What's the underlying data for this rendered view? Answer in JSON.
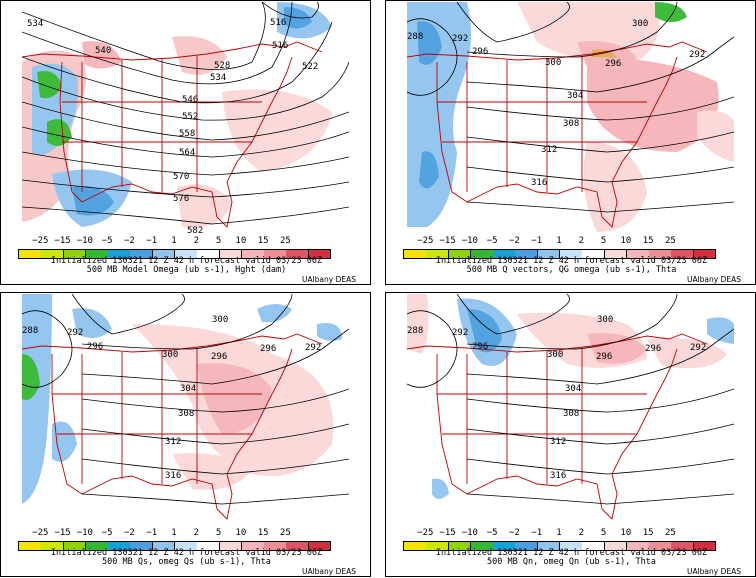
{
  "colorbar": {
    "tick_labels": [
      "−25",
      "−15",
      "−10",
      "−5",
      "−2",
      "−1",
      "1",
      "2",
      "5",
      "10",
      "15",
      "25"
    ],
    "colors": [
      "#f5e400",
      "#cfe600",
      "#8fd400",
      "#34b831",
      "#15a0d6",
      "#4a9fe0",
      "#8fc4ef",
      "#c7e2f8",
      "#ffffff",
      "#fbd8d8",
      "#f5b4b9",
      "#ed8e97",
      "#e05566",
      "#d12f3f"
    ]
  },
  "panels": [
    {
      "footer_line1": "Initialized 130321 12 Z  42 h forecast valid 03/23 06Z",
      "footer_line2": "500 MB Model Omega (ub s-1), Hght (dam)",
      "credit": "UAlbany DEAS",
      "contour_labels": [
        "534",
        "540",
        "528",
        "534",
        "546",
        "552",
        "558",
        "564",
        "570",
        "576",
        "582",
        "516",
        "516",
        "522"
      ]
    },
    {
      "footer_line1": "Initialized 130321 12 Z  42 h forecast valid 03/23 06Z",
      "footer_line2": "500 MB Q vectors, QG omega (ub s-1), Thta",
      "credit": "UAlbany DEAS",
      "contour_labels": [
        "288",
        "292",
        "296",
        "300",
        "296",
        "300",
        "292",
        "304",
        "308",
        "312",
        "316"
      ]
    },
    {
      "footer_line1": "Initialized 130321 12 Z  42 h forecast valid 03/23 06Z",
      "footer_line2": "500 MB Qs, omeg Qs (ub s-1), Thta",
      "credit": "UAlbany DEAS",
      "contour_labels": [
        "288",
        "292",
        "296",
        "300",
        "300",
        "296",
        "296",
        "292",
        "304",
        "308",
        "312",
        "316"
      ]
    },
    {
      "footer_line1": "Initialized 130321 12 Z  42 h forecast valid 03/23 06Z",
      "footer_line2": "500 MB Qn, omeg Qn (ub s-1), Thta",
      "credit": "UAlbany DEAS",
      "contour_labels": [
        "288",
        "292",
        "296",
        "300",
        "300",
        "296",
        "296",
        "292",
        "304",
        "308",
        "312",
        "316"
      ]
    }
  ]
}
